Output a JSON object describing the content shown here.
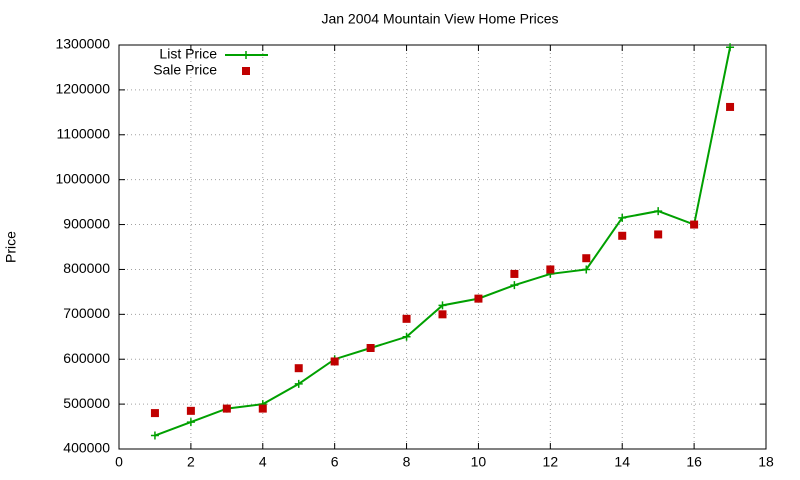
{
  "chart_data": {
    "type": "line",
    "title": "Jan 2004 Mountain View Home Prices",
    "y_label": "Price",
    "x": [
      1,
      2,
      3,
      4,
      5,
      6,
      7,
      8,
      9,
      10,
      11,
      12,
      13,
      14,
      15,
      16,
      17
    ],
    "series": [
      {
        "name": "List Price",
        "color": "#00a000",
        "style": "linespoints",
        "values": [
          430000,
          460000,
          490000,
          500000,
          545000,
          600000,
          625000,
          650000,
          720000,
          735000,
          765000,
          790000,
          800000,
          915000,
          930000,
          900000,
          1295000
        ]
      },
      {
        "name": "Sale Price",
        "color": "#c00000",
        "style": "points",
        "values": [
          480000,
          485000,
          490000,
          490000,
          580000,
          595000,
          625000,
          690000,
          700000,
          735000,
          790000,
          800000,
          825000,
          875000,
          878000,
          900000,
          1162000
        ]
      }
    ],
    "xlim": [
      0,
      18
    ],
    "xticks": [
      0,
      2,
      4,
      6,
      8,
      10,
      12,
      14,
      16,
      18
    ],
    "ylim": [
      400000,
      1300000
    ],
    "yticks": [
      400000,
      500000,
      600000,
      700000,
      800000,
      900000,
      1000000,
      1100000,
      1200000,
      1300000
    ],
    "grid": true,
    "legend": "top-left"
  }
}
